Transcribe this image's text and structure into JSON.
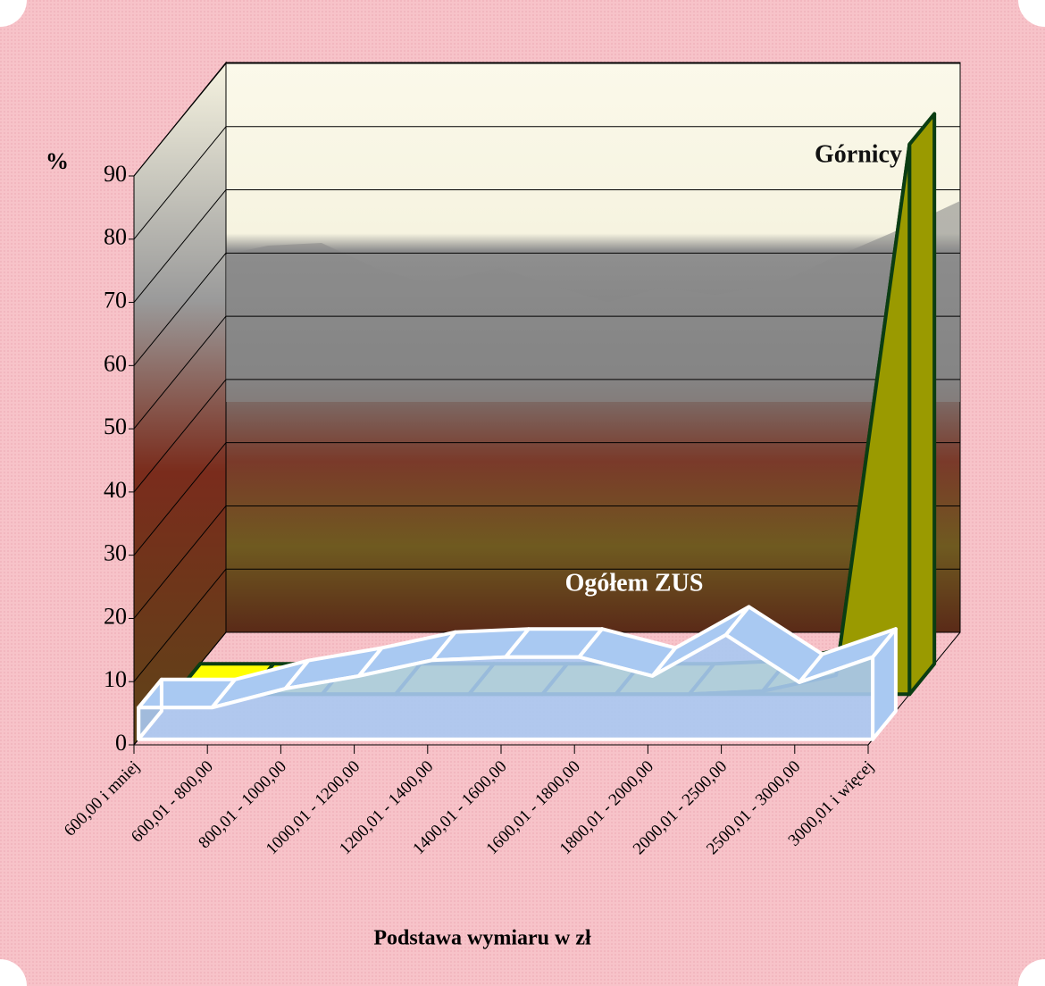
{
  "chart_data": {
    "type": "area3d",
    "y_label": "%",
    "x_label": "Podstawa wymiaru w zł",
    "categories": [
      "600,00 i mniej",
      "600,01 - 800,00",
      "800,01 - 1000,00",
      "1000,01 - 1200,00",
      "1200,01 - 1400,00",
      "1400,01 - 1600,00",
      "1600,01 - 1800,00",
      "1800,01 - 2000,00",
      "2000,01 - 2500,00",
      "2500,01 - 3000,00",
      "3000,01 i więcej"
    ],
    "series": [
      {
        "name": "Ogółem ZUS",
        "color": "#a9c9f2",
        "values": [
          5,
          5,
          8,
          10,
          12.5,
          13,
          13,
          10,
          16.5,
          9,
          13
        ]
      },
      {
        "name": "Górnicy",
        "color": "#ffff00",
        "values": [
          0,
          0,
          0,
          0,
          0,
          0,
          0,
          0,
          0.5,
          3,
          87
        ]
      }
    ],
    "ylim": [
      0,
      90
    ],
    "yticks": [
      0,
      10,
      20,
      30,
      40,
      50,
      60,
      70,
      80,
      90
    ],
    "grid": true
  }
}
